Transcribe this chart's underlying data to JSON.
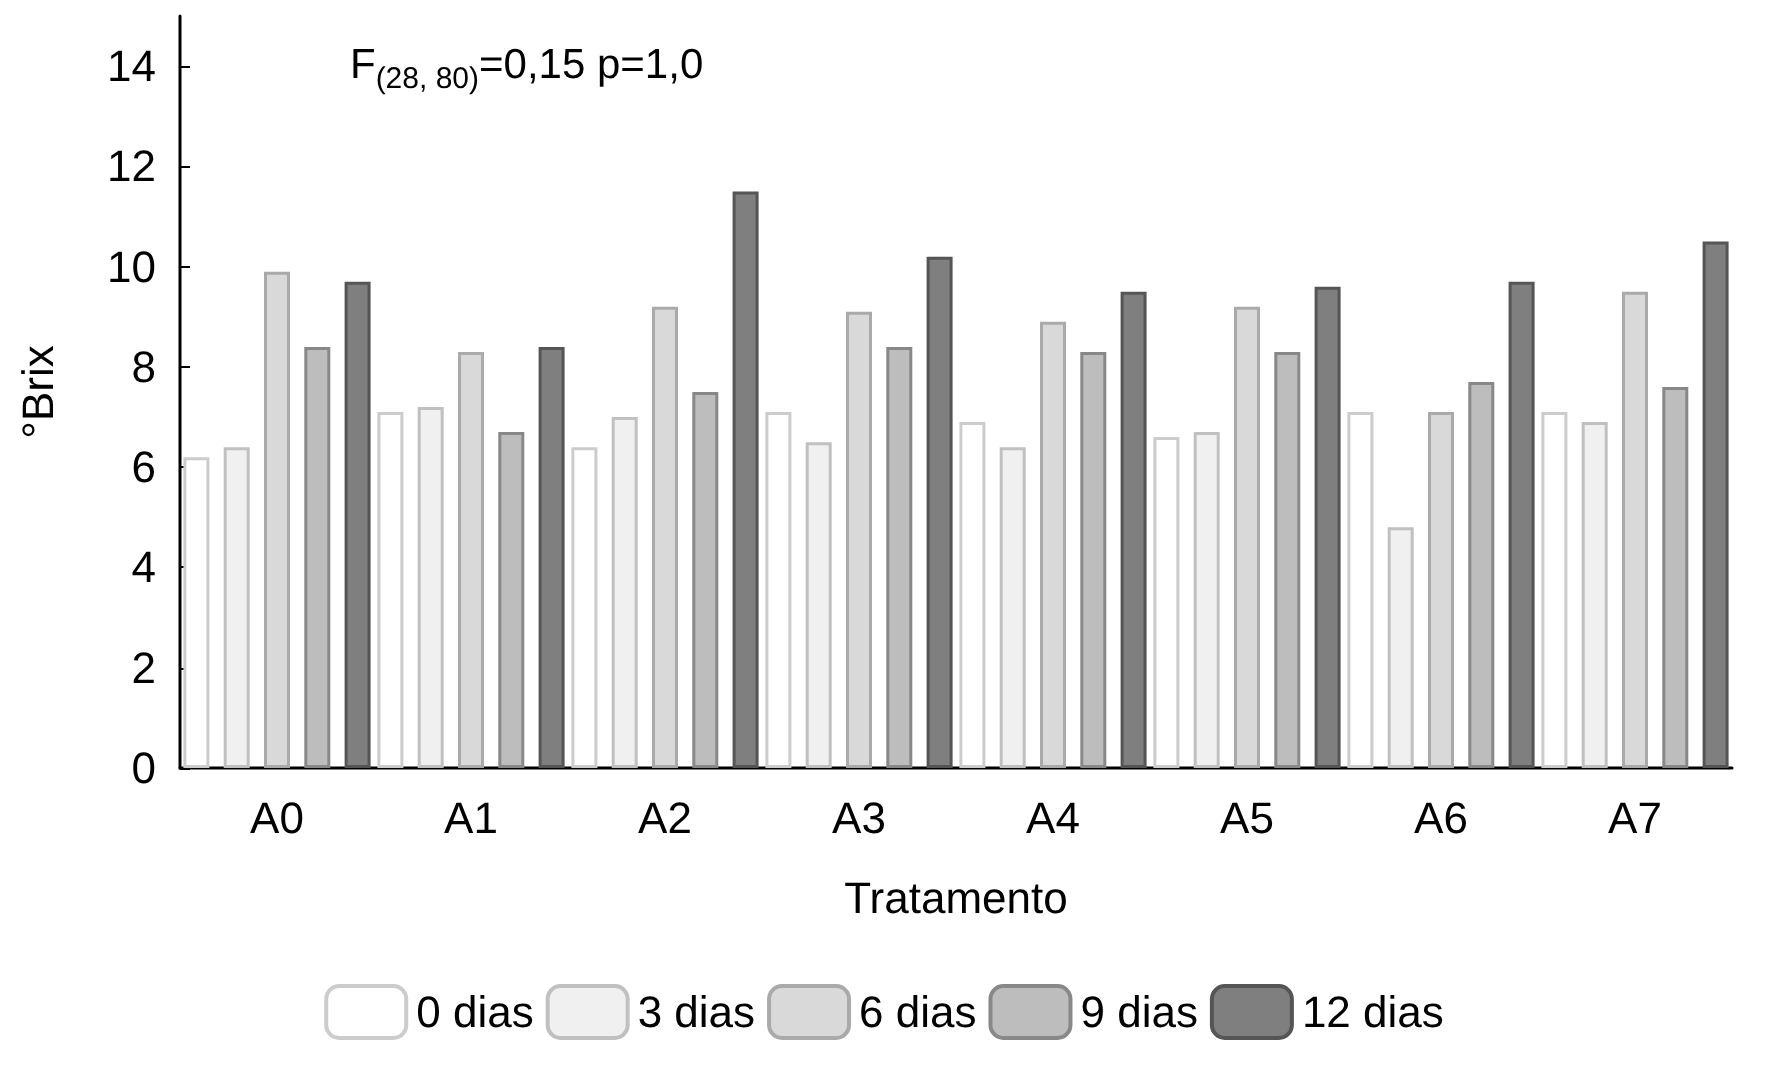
{
  "chart_data": {
    "type": "bar",
    "xlabel": "Tratamento",
    "ylabel": "°Brix",
    "annotations": [
      "F$_{(28, 80)}$=0,15 p=1,0"
    ],
    "categories": [
      "A0",
      "A1",
      "A2",
      "A3",
      "A4",
      "A5",
      "A6",
      "A7"
    ],
    "series": [
      {
        "name": "0 dias",
        "color": "#ffffff",
        "values": [
          6.2,
          7.1,
          6.4,
          7.1,
          6.9,
          6.6,
          7.1,
          7.1
        ]
      },
      {
        "name": "3 dias",
        "color": "#f0f0f0",
        "values": [
          6.4,
          7.2,
          7.0,
          6.5,
          6.4,
          6.7,
          4.8,
          6.9
        ]
      },
      {
        "name": "6 dias",
        "color": "#d9d9d9",
        "values": [
          9.9,
          8.3,
          9.2,
          9.1,
          8.9,
          9.2,
          7.1,
          9.5
        ]
      },
      {
        "name": "9 dias",
        "color": "#bdbdbd",
        "values": [
          8.4,
          6.7,
          7.5,
          8.4,
          8.3,
          8.3,
          7.7,
          7.6
        ]
      },
      {
        "name": "12 dias",
        "color": "#7f7f7f",
        "values": [
          9.7,
          8.4,
          11.5,
          10.2,
          9.5,
          9.6,
          9.7,
          10.5
        ]
      }
    ],
    "ylim": [
      0,
      15
    ],
    "yticks": [
      0,
      2,
      4,
      6,
      8,
      10,
      12,
      14
    ],
    "grid": false,
    "legend": "bottom"
  }
}
